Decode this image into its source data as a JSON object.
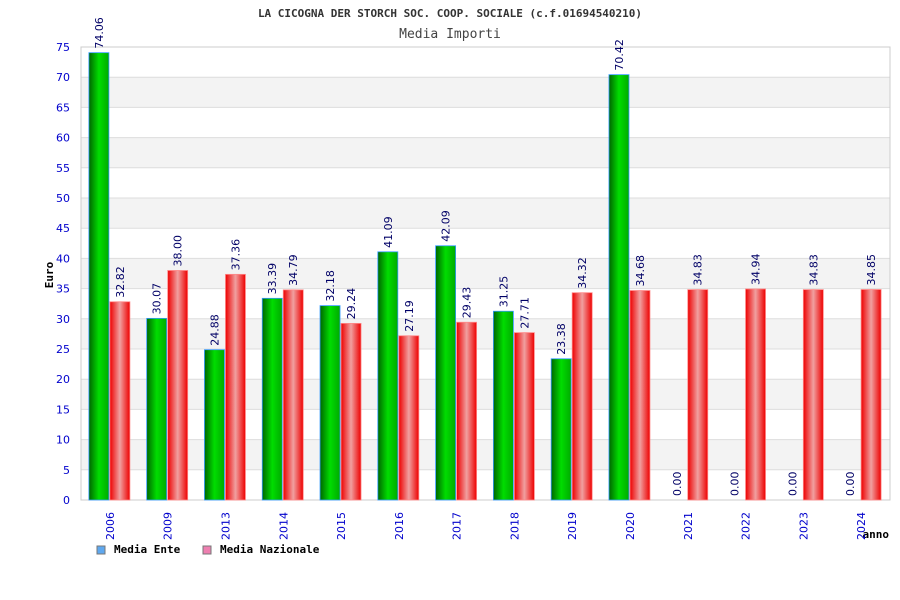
{
  "chart_data": {
    "type": "bar",
    "title": "LA CICOGNA DER STORCH SOC. COOP. SOCIALE (c.f.01694540210)",
    "subtitle": "Media Importi",
    "xlabel": "anno",
    "ylabel": "Euro",
    "ylim": [
      0,
      75
    ],
    "yticks": [
      0,
      5,
      10,
      15,
      20,
      25,
      30,
      35,
      40,
      45,
      50,
      55,
      60,
      65,
      70,
      75
    ],
    "grid": true,
    "legend_position": "bottom-left",
    "categories": [
      "2006",
      "2009",
      "2013",
      "2014",
      "2015",
      "2016",
      "2017",
      "2018",
      "2019",
      "2020",
      "2021",
      "2022",
      "2023",
      "2024"
    ],
    "series": [
      {
        "name": "Media Ente",
        "color": "#00c000",
        "legend_color": "#5fa8ef",
        "values": [
          74.06,
          30.07,
          24.88,
          33.39,
          32.18,
          41.09,
          42.09,
          31.25,
          23.38,
          70.42,
          0,
          0,
          0,
          0
        ],
        "labels": [
          "74.06",
          "30.07",
          "24.88",
          "33.39",
          "32.18",
          "41.09",
          "42.09",
          "31.25",
          "23.38",
          "70.42",
          "0.00",
          "0.00",
          "0.00",
          "0.00"
        ]
      },
      {
        "name": "Media Nazionale",
        "color": "#ee1111",
        "legend_color": "#ee7fb0",
        "values": [
          32.82,
          38.0,
          37.36,
          34.79,
          29.24,
          27.19,
          29.43,
          27.71,
          34.32,
          34.68,
          34.83,
          34.94,
          34.83,
          34.85
        ],
        "labels": [
          "32.82",
          "38.00",
          "37.36",
          "34.79",
          "29.24",
          "27.19",
          "29.43",
          "27.71",
          "34.32",
          "34.68",
          "34.83",
          "34.94",
          "34.83",
          "34.85"
        ]
      }
    ]
  }
}
